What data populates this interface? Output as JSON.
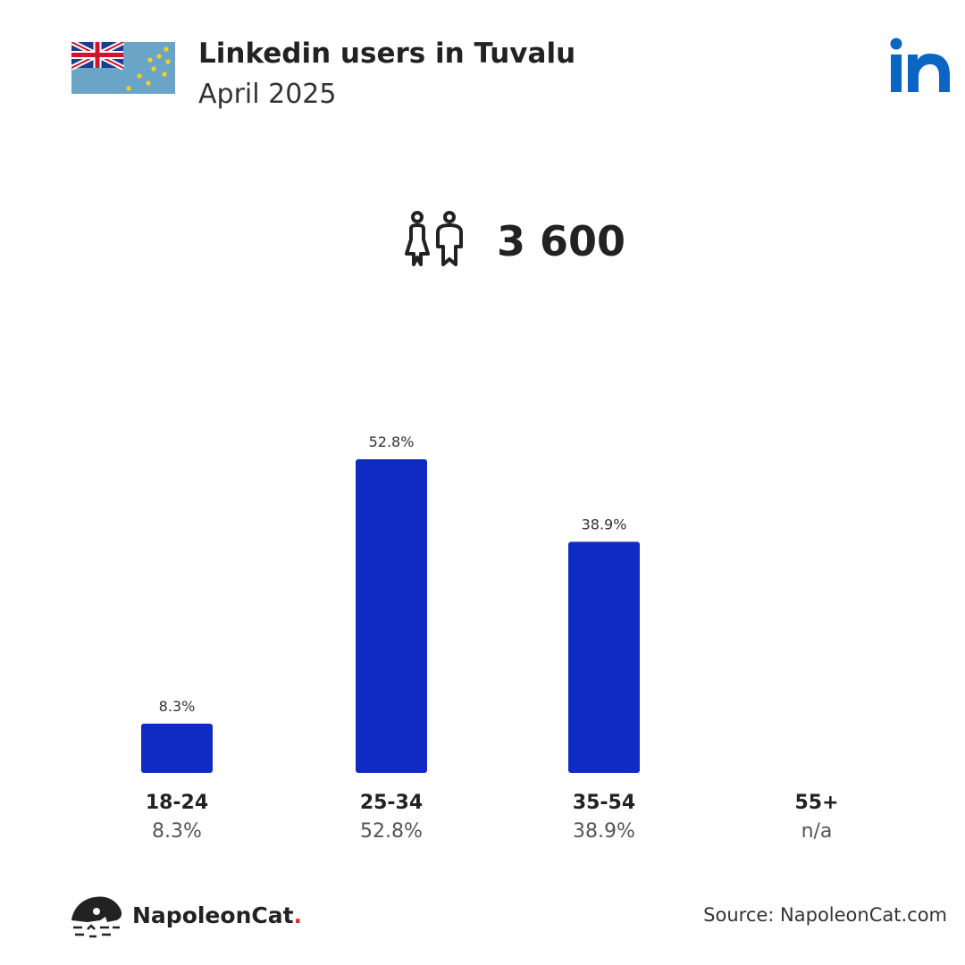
{
  "header": {
    "title": "Linkedin users in Tuvalu",
    "subtitle": "April 2025"
  },
  "summary": {
    "total_users": "3 600"
  },
  "chart_data": {
    "type": "bar",
    "categories": [
      "18-24",
      "25-34",
      "35-54",
      "55+"
    ],
    "values": [
      8.3,
      52.8,
      38.9,
      null
    ],
    "value_labels": [
      "8.3%",
      "52.8%",
      "38.9%",
      "n/a"
    ],
    "bar_color": "#0f2bc3",
    "ylim": [
      0,
      52.8
    ]
  },
  "footer": {
    "brand": "NapoleonCat",
    "brand_dot": ".",
    "source": "Source: NapoleonCat.com"
  },
  "colors": {
    "linkedin_blue": "#0a66c2",
    "flag_blue": "#5b9ac0",
    "brand_dot": "#e3262d"
  }
}
